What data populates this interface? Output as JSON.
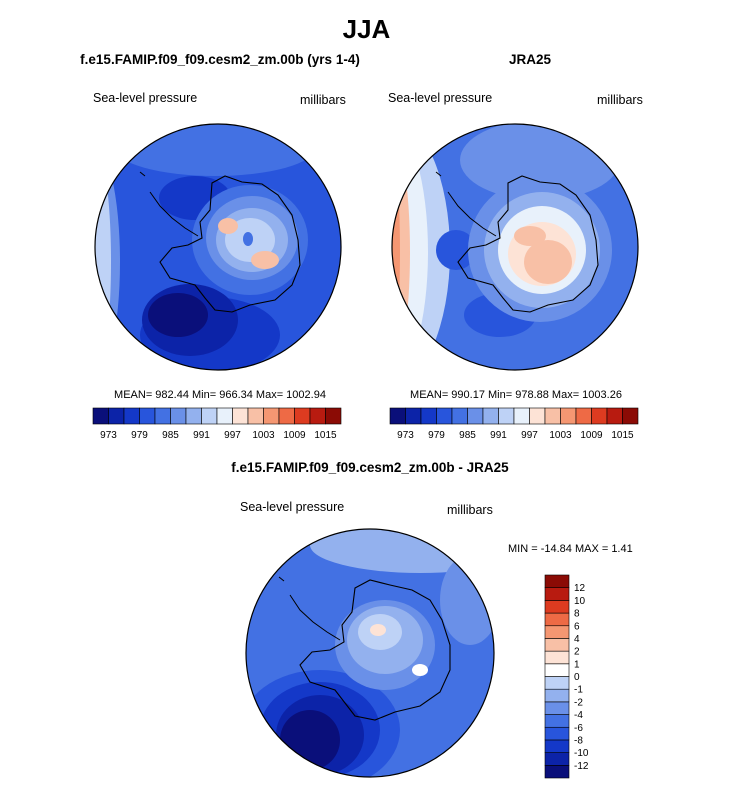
{
  "figure": {
    "season": "JJA"
  },
  "panels": {
    "model": {
      "title": "f.e15.FAMIP.f09_f09.cesm2_zm.00b (yrs 1-4)",
      "variable": "Sea-level pressure",
      "units": "millibars",
      "stats": "MEAN= 982.44  Min= 966.34  Max= 1002.94"
    },
    "obs": {
      "title": "JRA25",
      "variable": "Sea-level pressure",
      "units": "millibars",
      "stats": "MEAN= 990.17  Min= 978.88  Max= 1003.26"
    },
    "diff": {
      "title": "f.e15.FAMIP.f09_f09.cesm2_zm.00b - JRA25",
      "variable": "Sea-level pressure",
      "units": "millibars",
      "stats": "MIN = -14.84 MAX =   1.41"
    }
  },
  "chart_data": [
    {
      "type": "heatmap",
      "projection": "south-polar-stereographic",
      "title": "f.e15.FAMIP.f09_f09.cesm2_zm.00b (yrs 1-4)",
      "variable": "Sea-level pressure",
      "units": "millibars",
      "mean": 982.44,
      "min": 966.34,
      "max": 1002.94,
      "colorbar": {
        "levels": [
          973,
          976,
          979,
          982,
          985,
          988,
          991,
          994,
          997,
          1000,
          1003,
          1006,
          1009,
          1012,
          1015
        ],
        "tick_labels": [
          "973",
          "979",
          "985",
          "991",
          "997",
          "1003",
          "1009",
          "1015"
        ],
        "colors": [
          "#0a0f7a",
          "#0c23a8",
          "#1438c8",
          "#2855dc",
          "#4371e3",
          "#6a90e8",
          "#93b1ee",
          "#bed2f6",
          "#e8f1fb",
          "#fde3d6",
          "#f8c0a6",
          "#f59772",
          "#ee6a45",
          "#dd3b20",
          "#b81b10",
          "#8b0b05"
        ]
      }
    },
    {
      "type": "heatmap",
      "projection": "south-polar-stereographic",
      "title": "JRA25",
      "variable": "Sea-level pressure",
      "units": "millibars",
      "mean": 990.17,
      "min": 978.88,
      "max": 1003.26,
      "colorbar": {
        "levels": [
          973,
          976,
          979,
          982,
          985,
          988,
          991,
          994,
          997,
          1000,
          1003,
          1006,
          1009,
          1012,
          1015
        ],
        "tick_labels": [
          "973",
          "979",
          "985",
          "991",
          "997",
          "1003",
          "1009",
          "1015"
        ],
        "colors": [
          "#0a0f7a",
          "#0c23a8",
          "#1438c8",
          "#2855dc",
          "#4371e3",
          "#6a90e8",
          "#93b1ee",
          "#bed2f6",
          "#e8f1fb",
          "#fde3d6",
          "#f8c0a6",
          "#f59772",
          "#ee6a45",
          "#dd3b20",
          "#b81b10",
          "#8b0b05"
        ]
      }
    },
    {
      "type": "heatmap",
      "projection": "south-polar-stereographic",
      "title": "f.e15.FAMIP.f09_f09.cesm2_zm.00b - JRA25",
      "variable": "Sea-level pressure",
      "units": "millibars",
      "min": -14.84,
      "max": 1.41,
      "colorbar": {
        "levels": [
          -12,
          -10,
          -8,
          -6,
          -4,
          -2,
          -1,
          0,
          1,
          2,
          4,
          6,
          8,
          10,
          12
        ],
        "tick_labels": [
          "-12",
          "-10",
          "-8",
          "-6",
          "-4",
          "-2",
          "-1",
          "0",
          "1",
          "2",
          "4",
          "6",
          "8",
          "10",
          "12"
        ],
        "colors": [
          "#0a0f7a",
          "#0c23a8",
          "#1438c8",
          "#2855dc",
          "#4371e3",
          "#6a90e8",
          "#93b1ee",
          "#bed2f6",
          "#ffffff",
          "#fde3d6",
          "#f8c0a6",
          "#f59772",
          "#ee6a45",
          "#dd3b20",
          "#b81b10",
          "#8b0b05"
        ]
      }
    }
  ]
}
